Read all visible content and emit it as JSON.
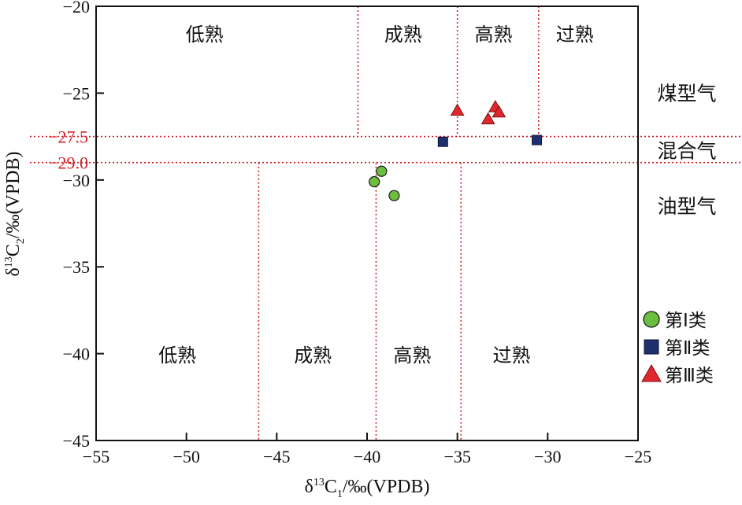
{
  "chart_data": {
    "type": "scatter",
    "xlabel": {
      "prefix": "δ",
      "sup": "13",
      "main": "C",
      "sub": "1",
      "suffix": "/‰(VPDB)"
    },
    "ylabel": {
      "prefix": "δ",
      "sup": "13",
      "main": "C",
      "sub": "2",
      "suffix": "/‰(VPDB)"
    },
    "xlim": [
      -55,
      -25
    ],
    "ylim": [
      -45,
      -20
    ],
    "x_ticks": [
      -55,
      -50,
      -45,
      -40,
      -35,
      -30,
      -25
    ],
    "y_ticks": [
      -45,
      -40,
      -35,
      -30,
      -25,
      -20
    ],
    "x_tick_labels": [
      "−55",
      "−50",
      "−45",
      "−40",
      "−35",
      "−30",
      "−25"
    ],
    "y_tick_labels": [
      "−45",
      "−40",
      "−35",
      "−30",
      "−25",
      "−20"
    ],
    "grid": false,
    "thresholds_y": [
      {
        "value": -27.5,
        "label": "−27.5"
      },
      {
        "value": -29.0,
        "label": "−29.0"
      }
    ],
    "upper_zone_boundaries_x": [
      -40.5,
      -35.0,
      -30.5
    ],
    "lower_zone_boundaries_x": [
      -46.0,
      -39.5,
      -34.8
    ],
    "upper_zone_labels": [
      {
        "text": "低熟",
        "x": -49.0
      },
      {
        "text": "成熟",
        "x": -38.0
      },
      {
        "text": "高熟",
        "x": -33.0
      },
      {
        "text": "过熟",
        "x": -28.5
      }
    ],
    "lower_zone_labels": [
      {
        "text": "低熟",
        "x": -50.5
      },
      {
        "text": "成熟",
        "x": -43.0
      },
      {
        "text": "高熟",
        "x": -37.5
      },
      {
        "text": "过熟",
        "x": -32.0
      }
    ],
    "gas_type_labels": [
      {
        "text": "煤型气",
        "y": -25.0
      },
      {
        "text": "混合气",
        "y": -28.3
      },
      {
        "text": "油型气",
        "y": -31.5
      }
    ],
    "series": [
      {
        "name": "第Ⅰ类",
        "marker": "circle",
        "color": "#6cbf3e",
        "points": [
          [
            -39.6,
            -30.1
          ],
          [
            -39.2,
            -29.5
          ],
          [
            -38.5,
            -30.9
          ]
        ]
      },
      {
        "name": "第Ⅱ类",
        "marker": "square",
        "color": "#1f2f6b",
        "points": [
          [
            -35.8,
            -27.8
          ],
          [
            -30.6,
            -27.7
          ]
        ]
      },
      {
        "name": "第Ⅲ类",
        "marker": "triangle",
        "color": "#e0272d",
        "points": [
          [
            -35.0,
            -26.0
          ],
          [
            -33.3,
            -26.5
          ],
          [
            -32.9,
            -25.8
          ],
          [
            -32.7,
            -26.1
          ]
        ]
      }
    ],
    "legend_position": "right"
  }
}
